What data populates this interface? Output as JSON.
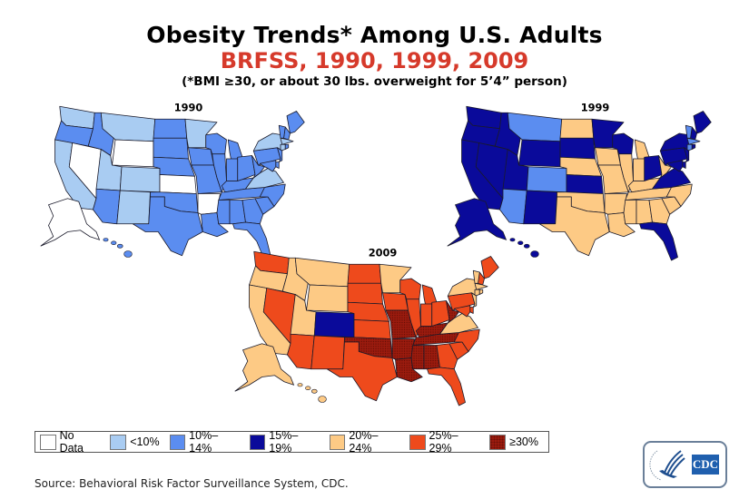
{
  "header": {
    "title": "Obesity Trends* Among U.S. Adults",
    "subtitle": "BRFSS, 1990, 1999, 2009",
    "note": "(*BMI ≥30, or about 30 lbs. overweight for 5’4” person)"
  },
  "source": "Source: Behavioral Risk Factor Surveillance System, CDC.",
  "logo": {
    "text": "CDC",
    "icon": "hhs-eagle-icon"
  },
  "chart_data": {
    "type": "heatmap",
    "subtype": "choropleth-us-states",
    "title": "Obesity Trends* Among U.S. Adults",
    "subtitle": "BRFSS, 1990, 1999, 2009",
    "legend": {
      "placement": "bottom-left",
      "categories": [
        {
          "key": "nd",
          "label": "No Data",
          "color": "#ffffff"
        },
        {
          "key": "c1",
          "label": "<10%",
          "color": "#a9ccf2"
        },
        {
          "key": "c2",
          "label": "10%–14%",
          "color": "#5b8df0"
        },
        {
          "key": "c3",
          "label": "15%–19%",
          "color": "#0a0a9a"
        },
        {
          "key": "c4",
          "label": "20%–24%",
          "color": "#fdca85"
        },
        {
          "key": "c5",
          "label": "25%–29%",
          "color": "#ee4a1c"
        },
        {
          "key": "c6",
          "label": "≥30%",
          "color": "#9c1b0e"
        }
      ]
    },
    "maps": [
      {
        "year": "1990",
        "values": {
          "WA": "c1",
          "OR": "c2",
          "CA": "c1",
          "NV": "nd",
          "ID": "c2",
          "MT": "c1",
          "WY": "nd",
          "UT": "c1",
          "CO": "c1",
          "AZ": "c2",
          "NM": "c1",
          "ND": "c2",
          "SD": "c2",
          "NE": "c2",
          "KS": "nd",
          "OK": "c2",
          "TX": "c2",
          "MN": "c1",
          "IA": "c2",
          "MO": "c2",
          "AR": "nd",
          "LA": "c2",
          "WI": "c2",
          "IL": "c2",
          "MI": "c2",
          "IN": "c2",
          "OH": "c2",
          "KY": "c2",
          "TN": "c2",
          "MS": "c2",
          "AL": "c2",
          "GA": "c2",
          "FL": "c2",
          "SC": "c2",
          "NC": "c2",
          "VA": "c1",
          "WV": "c2",
          "PA": "c2",
          "NY": "c1",
          "ME": "c2",
          "NH": "c2",
          "VT": "c2",
          "MA": "c1",
          "CT": "c1",
          "RI": "c2",
          "NJ": "c2",
          "DE": "c2",
          "MD": "c2",
          "AK": "nd",
          "HI": "c2"
        }
      },
      {
        "year": "1999",
        "values": {
          "WA": "c3",
          "OR": "c3",
          "CA": "c3",
          "NV": "c3",
          "ID": "c3",
          "MT": "c2",
          "WY": "c3",
          "UT": "c3",
          "CO": "c2",
          "AZ": "c2",
          "NM": "c3",
          "ND": "c4",
          "SD": "c3",
          "NE": "c4",
          "KS": "c3",
          "OK": "c4",
          "TX": "c4",
          "MN": "c3",
          "IA": "c4",
          "MO": "c4",
          "AR": "c4",
          "LA": "c4",
          "WI": "c3",
          "IL": "c4",
          "MI": "c4",
          "IN": "c4",
          "OH": "c3",
          "KY": "c4",
          "TN": "c4",
          "MS": "c4",
          "AL": "c4",
          "GA": "c4",
          "FL": "c3",
          "SC": "c4",
          "NC": "c4",
          "VA": "c3",
          "WV": "c4",
          "PA": "c3",
          "NY": "c3",
          "ME": "c3",
          "NH": "c3",
          "VT": "c2",
          "MA": "c2",
          "CT": "c2",
          "RI": "c3",
          "NJ": "c3",
          "DE": "c3",
          "MD": "c3",
          "AK": "c3",
          "HI": "c3"
        }
      },
      {
        "year": "2009",
        "values": {
          "WA": "c5",
          "OR": "c4",
          "CA": "c4",
          "NV": "c5",
          "ID": "c4",
          "MT": "c4",
          "WY": "c4",
          "UT": "c4",
          "CO": "c3",
          "AZ": "c5",
          "NM": "c5",
          "ND": "c5",
          "SD": "c5",
          "NE": "c5",
          "KS": "c5",
          "OK": "c6",
          "TX": "c5",
          "MN": "c4",
          "IA": "c5",
          "MO": "c6",
          "AR": "c6",
          "LA": "c6",
          "WI": "c5",
          "IL": "c5",
          "MI": "c5",
          "IN": "c5",
          "OH": "c5",
          "KY": "c6",
          "TN": "c6",
          "MS": "c6",
          "AL": "c6",
          "GA": "c5",
          "FL": "c5",
          "SC": "c5",
          "NC": "c5",
          "VA": "c4",
          "WV": "c6",
          "PA": "c5",
          "NY": "c4",
          "ME": "c5",
          "NH": "c5",
          "VT": "c4",
          "MA": "c4",
          "CT": "c4",
          "RI": "c4",
          "NJ": "c4",
          "DE": "c5",
          "MD": "c5",
          "AK": "c4",
          "HI": "c4"
        }
      }
    ]
  }
}
